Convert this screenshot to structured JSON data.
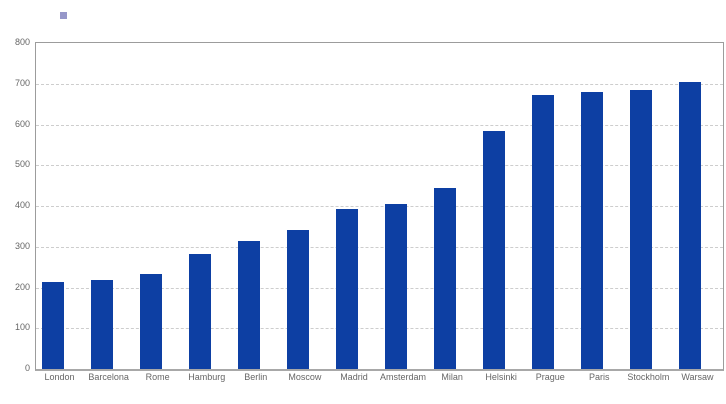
{
  "chart_data": {
    "type": "bar",
    "title": "",
    "categories": [
      "London",
      "Barcelona",
      "Rome",
      "Hamburg",
      "Berlin",
      "Moscow",
      "Madrid",
      "Amsterdam",
      "Milan",
      "Helsinki",
      "Prague",
      "Paris",
      "Stockholm",
      "Warsaw"
    ],
    "values": [
      213,
      218,
      233,
      283,
      313,
      342,
      392,
      405,
      445,
      583,
      673,
      680,
      685,
      705
    ],
    "xlabel": "",
    "ylabel": "",
    "ylim": [
      0,
      800
    ],
    "yticks": [
      0,
      100,
      200,
      300,
      400,
      500,
      600,
      700,
      800
    ],
    "grid": "horizontal-dashed",
    "legend": {
      "position": "top-left",
      "label": "",
      "marker": "square"
    },
    "colors": {
      "bar": "#0d3fa3",
      "legend_marker": "#9697c9",
      "grid": "#cdcdcd",
      "axis": "#9c9c9c",
      "text": "#666666",
      "background": "#ffffff"
    }
  }
}
